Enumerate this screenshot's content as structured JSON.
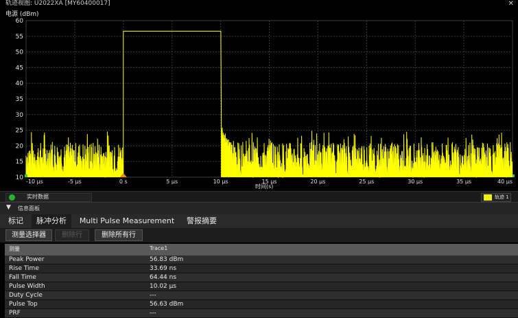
{
  "window": {
    "title": "轨迹视图: U2022XA [MY60400017]"
  },
  "chart_data": {
    "type": "line",
    "ylabel": "电源 (dBm)",
    "xlabel": "时间(s)",
    "ylim": [
      10,
      60
    ],
    "yticks": [
      "10",
      "15",
      "20",
      "25",
      "30",
      "35",
      "40",
      "45",
      "50",
      "55",
      "60"
    ],
    "xlim_us": [
      -10,
      40
    ],
    "xticks": [
      "-10 µs",
      "-5 µs",
      "0 s",
      "5 µs",
      "10 µs",
      "15 µs",
      "20 µs",
      "25 µs",
      "30 µs",
      "35 µs",
      "40 µs"
    ],
    "grid": true,
    "series": [
      {
        "color": "#ffff00",
        "pulse_top_dbm": 56.63,
        "pulse_start_us": 0,
        "pulse_end_us": 10.02,
        "noise_floor_dbm": [
          10,
          25
        ]
      }
    ]
  },
  "status": {
    "live_label": "实时数据",
    "trace_label": "轨迹 1"
  },
  "panel": {
    "title": "信息面板"
  },
  "tabs": [
    {
      "label": "标记"
    },
    {
      "label": "脉冲分析"
    },
    {
      "label": "Multi Pulse Measurement"
    },
    {
      "label": "警报摘要"
    }
  ],
  "toolbar": {
    "selector": "测量选择器",
    "delete_row": "删除行",
    "delete_all": "删除所有行"
  },
  "table": {
    "headers": [
      "测量",
      "Trace1"
    ],
    "rows": [
      {
        "name": "Peak Power",
        "value": "56.83 dBm"
      },
      {
        "name": "Rise Time",
        "value": "33.69 ns"
      },
      {
        "name": "Fall Time",
        "value": "64.44 ns"
      },
      {
        "name": "Pulse Width",
        "value": "10.02 µs"
      },
      {
        "name": "Duty Cycle",
        "value": "---"
      },
      {
        "name": "Pulse Top",
        "value": "56.63 dBm"
      },
      {
        "name": "PRF",
        "value": "---"
      }
    ]
  }
}
